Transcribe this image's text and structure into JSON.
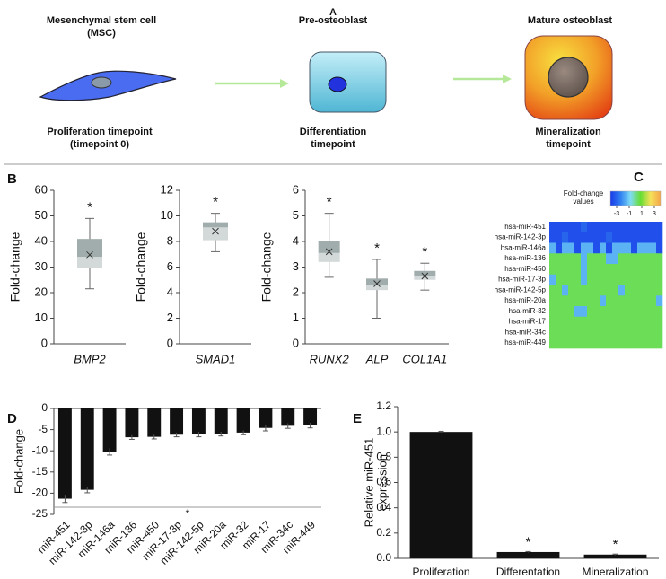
{
  "panel_labels": [
    "A",
    "B",
    "C",
    "D",
    "E"
  ],
  "diagram": {
    "stages": [
      {
        "title": [
          "Mesenchymal stem cell",
          "(MSC)"
        ],
        "timepoint": [
          "Proliferation timepoint",
          "(timepoint 0)"
        ]
      },
      {
        "title": [
          "Pre-osteoblast"
        ],
        "timepoint": [
          "Differentiation",
          "timepoint"
        ]
      },
      {
        "title": [
          "Mature osteoblast"
        ],
        "timepoint": [
          "Mineralization",
          "timepoint"
        ]
      }
    ]
  },
  "chart_data": [
    {
      "type": "box",
      "y_label": "Fold-change",
      "categories": [
        "BMP2"
      ],
      "min": [
        21.5
      ],
      "q1": [
        29.8
      ],
      "median": [
        34
      ],
      "q3": [
        41
      ],
      "max": [
        49
      ],
      "mean": [
        34.8
      ],
      "significance": [
        "*"
      ],
      "ylim": [
        0,
        60
      ],
      "yticks": [
        0,
        10,
        20,
        30,
        40,
        50,
        60
      ],
      "colors": [
        "#d3d8d8",
        "#a1adac"
      ]
    },
    {
      "type": "box",
      "y_label": "Fold-change",
      "categories": [
        "SMAD1"
      ],
      "min": [
        7.2
      ],
      "q1": [
        8.1
      ],
      "median": [
        9.1
      ],
      "q3": [
        9.5
      ],
      "max": [
        10.2
      ],
      "mean": [
        8.8
      ],
      "significance": [
        "*"
      ],
      "ylim": [
        0,
        12
      ],
      "yticks": [
        0,
        2,
        4,
        6,
        8,
        10,
        12
      ],
      "colors": [
        "#d3d8d8",
        "#a1adac"
      ]
    },
    {
      "type": "box",
      "y_label": "Fold-change",
      "categories": [
        "RUNX2",
        "ALP",
        "COL1A1"
      ],
      "min": [
        2.6,
        1.0,
        2.1
      ],
      "q1": [
        3.2,
        2.1,
        2.5
      ],
      "median": [
        3.55,
        2.3,
        2.65
      ],
      "q3": [
        4.0,
        2.55,
        2.85
      ],
      "max": [
        5.1,
        3.3,
        3.15
      ],
      "mean": [
        3.6,
        2.35,
        2.65
      ],
      "significance": [
        "*",
        "*",
        "*"
      ],
      "ylim": [
        0,
        6
      ],
      "yticks": [
        0,
        1,
        2,
        3,
        4,
        5,
        6
      ],
      "colors": [
        "#d3d8d8",
        "#a1adac"
      ]
    },
    {
      "type": "heatmap",
      "rows": [
        "hsa-miR-451",
        "hsa-miR-142-3p",
        "hsa-miR-146a",
        "hsa-miR-136",
        "hsa-miR-450",
        "hsa-miR-17-3p",
        "hsa-miR-142-5p",
        "hsa-miR-20a",
        "hsa-miR-32",
        "hsa-miR-17",
        "hsa-miR-34c",
        "hsa-miR-449"
      ],
      "values": [
        [
          -3.5,
          -3.5,
          -3.5,
          -3.5,
          -3.5,
          -3,
          -3.5,
          -3.5,
          -3.5,
          -3.5,
          -3.5,
          -3.5,
          -3.5,
          -3.5,
          -3.5,
          -3.5,
          -3.5,
          -3.5
        ],
        [
          -3.5,
          -3.5,
          -3,
          -3.5,
          -3.5,
          -3.5,
          -3.5,
          -3.5,
          -3.5,
          -3,
          -3.5,
          -3.5,
          -3.5,
          -3.5,
          -3.5,
          -3.5,
          -3.5,
          -3.5
        ],
        [
          -1.5,
          -3.5,
          -1.5,
          -1.5,
          -3.5,
          -1.5,
          -1.5,
          -3.5,
          -1.5,
          -3.5,
          -1.5,
          -1.5,
          -1.5,
          -3.5,
          -1.5,
          -1.5,
          -1.5,
          -3.5
        ],
        [
          0.5,
          0.5,
          0.5,
          0.5,
          0.5,
          -1.5,
          0.5,
          0.5,
          0.5,
          -1.5,
          -1.5,
          0.5,
          0.5,
          0.5,
          0.5,
          0.5,
          0.5,
          0.5
        ],
        [
          0.5,
          0.5,
          0.5,
          0.5,
          0.5,
          -1.5,
          0.5,
          0.5,
          0.5,
          0.5,
          0.5,
          0.5,
          0.5,
          0.5,
          0.5,
          0.5,
          0.5,
          0.5
        ],
        [
          -1.5,
          0.5,
          0.5,
          0.5,
          0.5,
          -1.5,
          0.5,
          0.5,
          0.5,
          0.5,
          0.5,
          0.5,
          0.5,
          0.5,
          0.5,
          0.5,
          0.5,
          0.5
        ],
        [
          0.5,
          0.5,
          -1.5,
          0.5,
          0.5,
          0.5,
          0.5,
          0.5,
          0.5,
          0.5,
          0.5,
          -1.5,
          0.5,
          0.5,
          0.5,
          0.5,
          0.5,
          0.5
        ],
        [
          0.5,
          0.5,
          0.5,
          0.5,
          0.5,
          0.5,
          0.5,
          0.5,
          -1.5,
          0.5,
          0.5,
          0.5,
          0.5,
          0.5,
          0.5,
          0.5,
          0.5,
          -1.5
        ],
        [
          0.5,
          0.5,
          0.5,
          0.5,
          -1.5,
          -1.5,
          0.5,
          0.5,
          0.5,
          0.5,
          0.5,
          0.5,
          0.5,
          0.5,
          0.5,
          0.5,
          0.5,
          0.5
        ],
        [
          0.5,
          0.5,
          0.5,
          0.5,
          0.5,
          0.5,
          0.5,
          0.5,
          0.5,
          0.5,
          0.5,
          0.5,
          0.5,
          0.5,
          0.5,
          0.5,
          0.5,
          0.5
        ],
        [
          0.5,
          0.5,
          0.5,
          0.5,
          0.5,
          0.5,
          0.5,
          0.5,
          0.5,
          0.5,
          0.5,
          0.5,
          0.5,
          0.5,
          0.5,
          0.5,
          0.5,
          0.5
        ],
        [
          0.5,
          0.5,
          0.5,
          0.5,
          0.5,
          0.5,
          0.5,
          0.5,
          0.5,
          0.5,
          0.5,
          0.5,
          0.5,
          0.5,
          0.5,
          0.5,
          0.5,
          0.5
        ]
      ],
      "zlim": [
        -4,
        4
      ],
      "colorbar_title": [
        "Fold-change",
        "values"
      ],
      "colorbar_ticks": [
        -3,
        -1,
        1,
        3
      ],
      "colors": [
        "#1a3ae8",
        "#2f7ef0",
        "#7fdcf5",
        "#66dd33",
        "#f5e15a",
        "#f3a64a"
      ]
    },
    {
      "type": "bar",
      "y_label": "Fold-change",
      "categories": [
        "miR-451",
        "miR-142-3p",
        "miR-146a",
        "miR-136",
        "miR-450",
        "miR-17-3p",
        "miR-142-5p",
        "miR-20a",
        "miR-32",
        "miR-17",
        "miR-34c",
        "miR-449"
      ],
      "values": [
        -21.3,
        -19.2,
        -10.2,
        -6.8,
        -6.7,
        -6.2,
        -6.1,
        -6.0,
        -5.7,
        -4.6,
        -4.1,
        -4.0
      ],
      "errors": [
        0.9,
        0.7,
        0.8,
        0.5,
        0.5,
        0.5,
        0.6,
        0.5,
        0.5,
        0.7,
        0.6,
        0.6
      ],
      "ylim": [
        -25,
        0
      ],
      "yticks": [
        0,
        -5,
        -10,
        -15,
        -20,
        -25
      ],
      "color": "#111111",
      "significance_label": "*"
    },
    {
      "type": "bar",
      "y_label": [
        "Relative miR-451",
        "expression"
      ],
      "categories": [
        "Proliferation",
        "Differentation",
        "Mineralization"
      ],
      "values": [
        1.0,
        0.05,
        0.03
      ],
      "errors": [
        0.005,
        0.004,
        0.004
      ],
      "annotations": [
        null,
        "*",
        "*"
      ],
      "ylim": [
        0,
        1.2
      ],
      "yticks": [
        {
          "value": 0,
          "label": "0.0"
        },
        0.2,
        0.4,
        0.6,
        0.8,
        {
          "value": 1,
          "label": "1.0"
        },
        1.2
      ],
      "color": "#111111"
    }
  ]
}
